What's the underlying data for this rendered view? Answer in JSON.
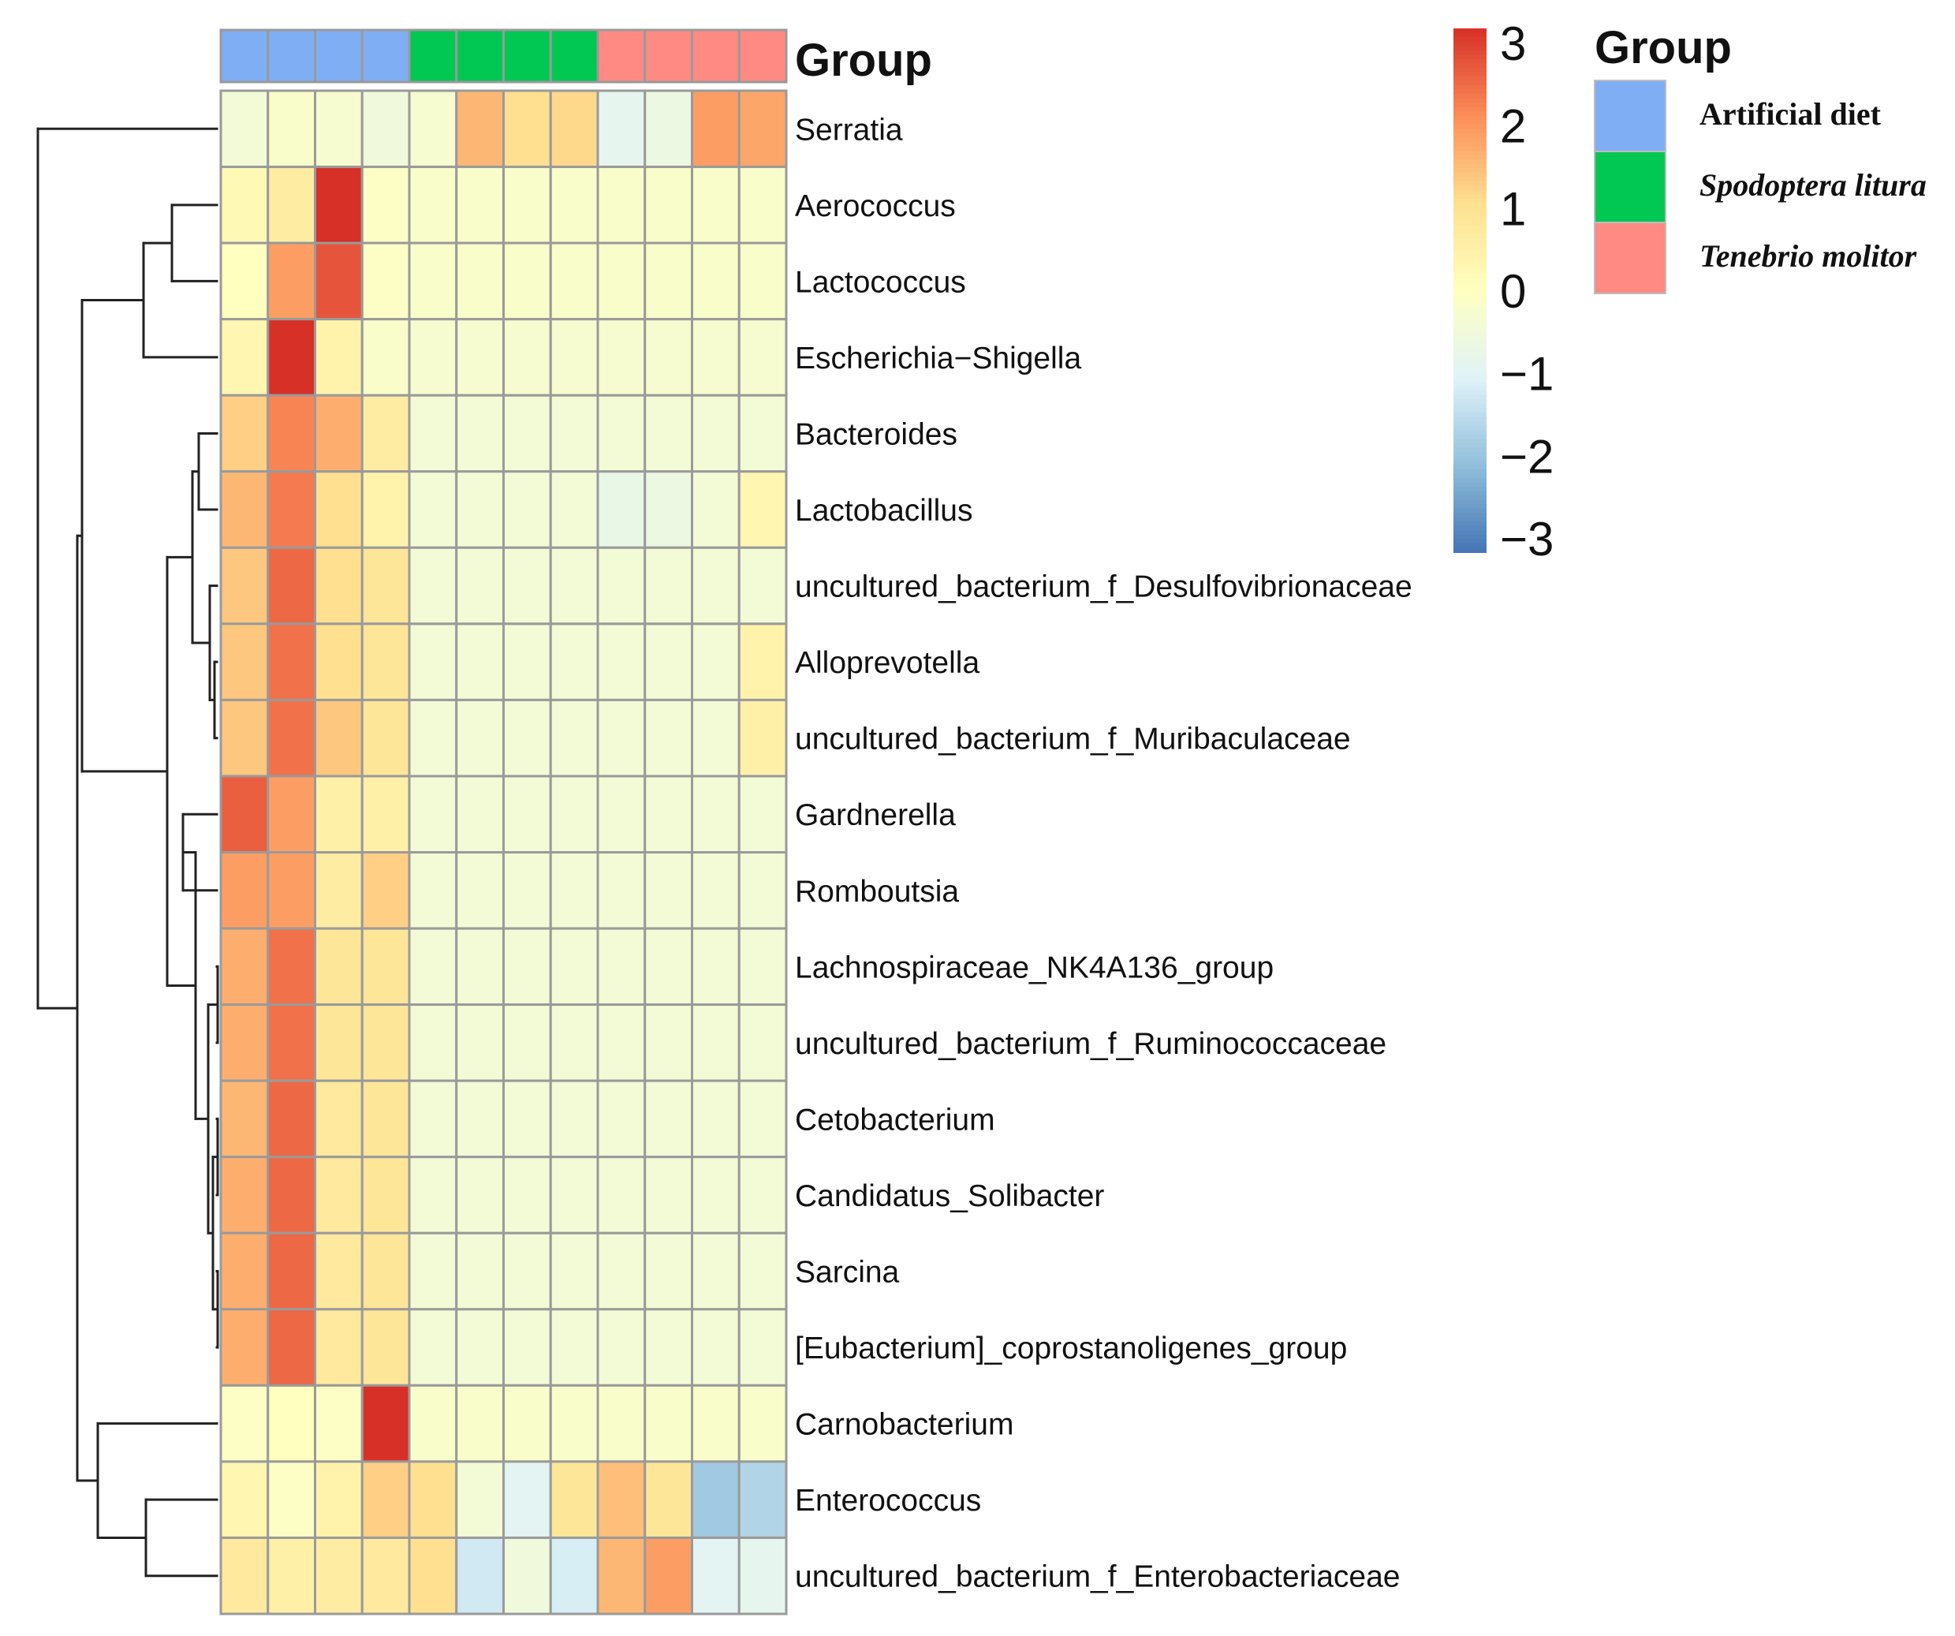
{
  "chart_data": {
    "type": "heatmap",
    "group_track_label": "Group",
    "legend": {
      "title": "Group",
      "entries": [
        {
          "label": "Artificial diet",
          "color": "#7FAEF5",
          "italic": false
        },
        {
          "label": "Spodoptera litura",
          "color": "#00C853",
          "italic": true
        },
        {
          "label": "Tenebrio molitor",
          "color": "#FF8A84",
          "italic": true
        }
      ]
    },
    "color_scale": {
      "min": -3,
      "max": 3,
      "ticks": [
        "3",
        "2",
        "1",
        "0",
        "−1",
        "−2",
        "−3"
      ],
      "stops": [
        {
          "value": -3,
          "color": "#4575B4"
        },
        {
          "value": -2,
          "color": "#91BFDB"
        },
        {
          "value": -1,
          "color": "#E0F3F8"
        },
        {
          "value": 0,
          "color": "#FFFFBF"
        },
        {
          "value": 1,
          "color": "#FEE090"
        },
        {
          "value": 2,
          "color": "#FC8D59"
        },
        {
          "value": 3,
          "color": "#D73027"
        }
      ]
    },
    "columns": [
      {
        "group": "Artificial diet"
      },
      {
        "group": "Artificial diet"
      },
      {
        "group": "Artificial diet"
      },
      {
        "group": "Artificial diet"
      },
      {
        "group": "Spodoptera litura"
      },
      {
        "group": "Spodoptera litura"
      },
      {
        "group": "Spodoptera litura"
      },
      {
        "group": "Spodoptera litura"
      },
      {
        "group": "Tenebrio molitor"
      },
      {
        "group": "Tenebrio molitor"
      },
      {
        "group": "Tenebrio molitor"
      },
      {
        "group": "Tenebrio molitor"
      }
    ],
    "rows": [
      {
        "name": "Serratia",
        "values": [
          -0.4,
          -0.2,
          -0.3,
          -0.5,
          -0.3,
          1.5,
          1.0,
          1.1,
          -0.8,
          -0.6,
          1.8,
          1.7
        ]
      },
      {
        "name": "Aerococcus",
        "values": [
          0.2,
          0.6,
          3.2,
          -0.1,
          -0.2,
          -0.2,
          -0.2,
          -0.2,
          -0.2,
          -0.2,
          -0.2,
          -0.2
        ]
      },
      {
        "name": "Lactococcus",
        "values": [
          0.0,
          1.8,
          2.6,
          -0.1,
          -0.2,
          -0.2,
          -0.2,
          -0.2,
          -0.2,
          -0.2,
          -0.2,
          -0.2
        ]
      },
      {
        "name": "Escherichia−Shigella",
        "values": [
          0.3,
          3.2,
          0.4,
          -0.2,
          -0.3,
          -0.3,
          -0.3,
          -0.3,
          -0.3,
          -0.3,
          -0.3,
          -0.3
        ]
      },
      {
        "name": "Bacteroides",
        "values": [
          1.2,
          2.1,
          1.6,
          0.6,
          -0.4,
          -0.4,
          -0.4,
          -0.4,
          -0.4,
          -0.4,
          -0.4,
          -0.4
        ]
      },
      {
        "name": "Lactobacillus",
        "values": [
          1.5,
          2.2,
          1.0,
          0.4,
          -0.4,
          -0.4,
          -0.4,
          -0.4,
          -0.7,
          -0.6,
          -0.4,
          0.3
        ]
      },
      {
        "name": "uncultured_bacterium_f_Desulfovibrionaceae",
        "values": [
          1.3,
          2.4,
          1.0,
          0.8,
          -0.4,
          -0.4,
          -0.4,
          -0.4,
          -0.4,
          -0.4,
          -0.4,
          -0.4
        ]
      },
      {
        "name": "Alloprevotella",
        "values": [
          1.3,
          2.3,
          1.0,
          0.8,
          -0.4,
          -0.4,
          -0.4,
          -0.4,
          -0.4,
          -0.4,
          -0.4,
          0.4
        ]
      },
      {
        "name": "uncultured_bacterium_f_Muribaculaceae",
        "values": [
          1.3,
          2.3,
          1.3,
          0.8,
          -0.4,
          -0.4,
          -0.4,
          -0.4,
          -0.4,
          -0.4,
          -0.4,
          0.5
        ]
      },
      {
        "name": "Gardnerella",
        "values": [
          2.5,
          1.8,
          0.5,
          0.5,
          -0.4,
          -0.4,
          -0.4,
          -0.4,
          -0.4,
          -0.4,
          -0.4,
          -0.4
        ]
      },
      {
        "name": "Romboutsia",
        "values": [
          1.8,
          1.8,
          0.6,
          1.2,
          -0.4,
          -0.4,
          -0.4,
          -0.4,
          -0.4,
          -0.4,
          -0.4,
          -0.4
        ]
      },
      {
        "name": "Lachnospiraceae_NK4A136_group",
        "values": [
          1.6,
          2.3,
          0.8,
          0.8,
          -0.4,
          -0.4,
          -0.4,
          -0.4,
          -0.4,
          -0.4,
          -0.4,
          -0.4
        ]
      },
      {
        "name": "uncultured_bacterium_f_Ruminococcaceae",
        "values": [
          1.6,
          2.3,
          0.8,
          0.8,
          -0.4,
          -0.4,
          -0.4,
          -0.4,
          -0.4,
          -0.4,
          -0.4,
          -0.4
        ]
      },
      {
        "name": "Cetobacterium",
        "values": [
          1.5,
          2.4,
          0.7,
          0.8,
          -0.4,
          -0.4,
          -0.4,
          -0.4,
          -0.4,
          -0.4,
          -0.4,
          -0.4
        ]
      },
      {
        "name": "Candidatus_Solibacter",
        "values": [
          1.6,
          2.4,
          0.7,
          0.8,
          -0.4,
          -0.4,
          -0.4,
          -0.4,
          -0.4,
          -0.4,
          -0.4,
          -0.4
        ]
      },
      {
        "name": "Sarcina",
        "values": [
          1.6,
          2.4,
          0.7,
          0.8,
          -0.4,
          -0.4,
          -0.4,
          -0.4,
          -0.4,
          -0.4,
          -0.4,
          -0.4
        ]
      },
      {
        "name": "[Eubacterium]_coprostanoligenes_group",
        "values": [
          1.6,
          2.4,
          0.7,
          0.8,
          -0.4,
          -0.4,
          -0.4,
          -0.4,
          -0.4,
          -0.4,
          -0.4,
          -0.4
        ]
      },
      {
        "name": "Carnobacterium",
        "values": [
          -0.1,
          0.0,
          -0.1,
          3.2,
          -0.2,
          -0.2,
          -0.2,
          -0.2,
          -0.2,
          -0.2,
          -0.2,
          -0.2
        ]
      },
      {
        "name": "Enterococcus",
        "values": [
          0.3,
          -0.1,
          0.4,
          1.2,
          1.0,
          -0.4,
          -0.9,
          0.8,
          1.4,
          0.8,
          -1.8,
          -1.6
        ]
      },
      {
        "name": "uncultured_bacterium_f_Enterobacteriaceae",
        "values": [
          0.7,
          0.5,
          0.6,
          0.7,
          1.0,
          -1.2,
          -0.5,
          -1.1,
          1.5,
          1.8,
          -0.9,
          -0.8
        ]
      }
    ]
  }
}
